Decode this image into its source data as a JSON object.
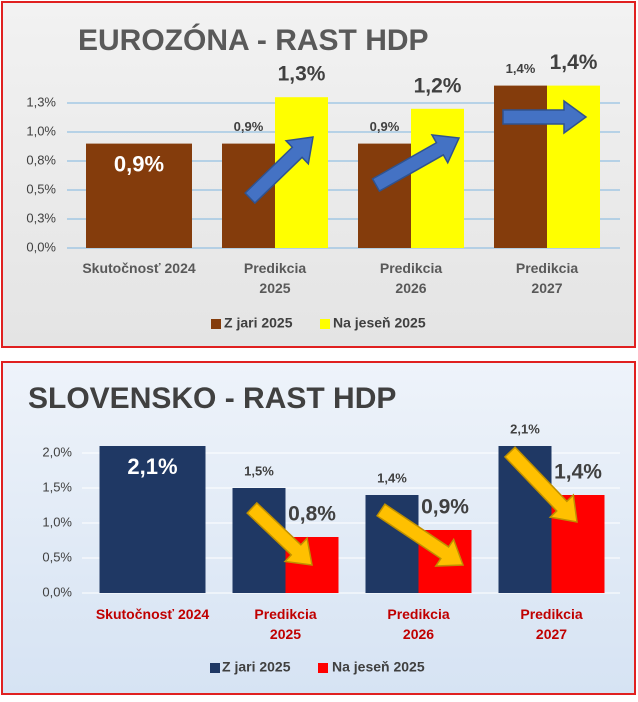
{
  "chart_data": [
    {
      "type": "bar",
      "title": "EUROZÓNA - RAST HDP",
      "categories": [
        "Skutočnosť 2024",
        "Predikcia\n2025",
        "Predikcia\n2026",
        "Predikcia\n2027"
      ],
      "series": [
        {
          "name": "Z jari 2025",
          "color": "#843c0c",
          "values": [
            0.9,
            0.9,
            0.9,
            1.4
          ],
          "value_labels": [
            "0,9%",
            "0,9%",
            "0,9%",
            "1,4%"
          ]
        },
        {
          "name": "Na jeseň 2025",
          "color": "#ffff00",
          "values": [
            null,
            1.3,
            1.2,
            1.4
          ],
          "value_labels": [
            null,
            "1,3%",
            "1,2%",
            "1,4%"
          ]
        }
      ],
      "ylim": [
        0,
        1.5
      ],
      "yticks": [
        {
          "value": 0,
          "label": "0,0%"
        },
        {
          "value": 0.25,
          "label": "0,3%"
        },
        {
          "value": 0.5,
          "label": "0,5%"
        },
        {
          "value": 0.75,
          "label": "0,8%"
        },
        {
          "value": 1.0,
          "label": "1,0%"
        },
        {
          "value": 1.25,
          "label": "1,3%"
        }
      ],
      "grid": true,
      "legend": "bottom"
    },
    {
      "type": "bar",
      "title": "SLOVENSKO - RAST HDP",
      "categories": [
        "Skutočnosť 2024",
        "Predikcia\n2025",
        "Predikcia\n2026",
        "Predikcia\n2027"
      ],
      "series": [
        {
          "name": "Z jari 2025",
          "color": "#1f3864",
          "values": [
            2.1,
            1.5,
            1.4,
            2.1
          ],
          "value_labels": [
            "2,1%",
            "1,5%",
            "1,4%",
            "2,1%"
          ]
        },
        {
          "name": "Na jeseň 2025",
          "color": "#ff0000",
          "values": [
            null,
            0.8,
            0.9,
            1.4
          ],
          "value_labels": [
            null,
            "0,8%",
            "0,9%",
            "1,4%"
          ]
        }
      ],
      "ylim": [
        0,
        2.5
      ],
      "yticks": [
        {
          "value": 0,
          "label": "0,0%"
        },
        {
          "value": 0.5,
          "label": "0,5%"
        },
        {
          "value": 1.0,
          "label": "1,0%"
        },
        {
          "value": 1.5,
          "label": "1,5%"
        },
        {
          "value": 2.0,
          "label": "2,0%"
        }
      ],
      "grid": true,
      "legend": "bottom"
    }
  ]
}
